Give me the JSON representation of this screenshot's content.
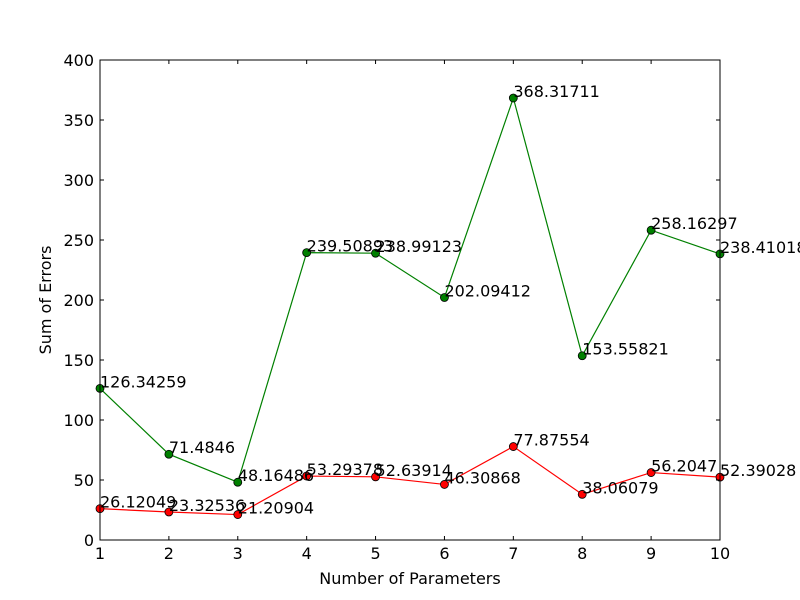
{
  "chart_data": {
    "type": "line",
    "title": "",
    "xlabel": "Number of Parameters",
    "ylabel": "Sum of Errors",
    "x": [
      1,
      2,
      3,
      4,
      5,
      6,
      7,
      8,
      9,
      10
    ],
    "xlim": [
      1,
      10
    ],
    "ylim": [
      0,
      400
    ],
    "x_ticks": [
      "1",
      "2",
      "3",
      "4",
      "5",
      "6",
      "7",
      "8",
      "9",
      "10"
    ],
    "y_ticks": [
      "0",
      "50",
      "100",
      "150",
      "200",
      "250",
      "300",
      "350",
      "400"
    ],
    "grid": false,
    "series": [
      {
        "color": "#008000",
        "marker": "circle",
        "values": [
          126.34259,
          71.4846,
          48.16486,
          239.50893,
          238.99123,
          202.09412,
          368.31711,
          153.55821,
          258.16297,
          238.41018
        ],
        "labels": [
          "126.34259",
          "71.4846",
          "48.16486",
          "239.50893",
          "238.99123",
          "202.09412",
          "368.31711",
          "153.55821",
          "258.16297",
          "238.41018"
        ]
      },
      {
        "color": "#ff0000",
        "marker": "circle",
        "values": [
          26.12049,
          23.32536,
          21.20904,
          53.29378,
          52.63914,
          46.30868,
          77.87554,
          38.06079,
          56.2047,
          52.39028
        ],
        "labels": [
          "26.12049",
          "23.32536",
          "21.20904",
          "53.29378",
          "52.63914",
          "46.30868",
          "77.87554",
          "38.06079",
          "56.2047",
          "52.39028"
        ]
      }
    ]
  }
}
